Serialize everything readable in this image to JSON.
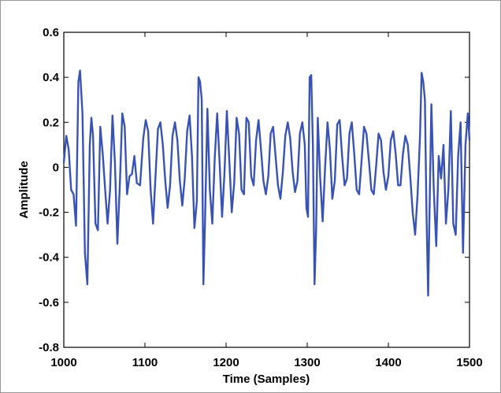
{
  "chart_data": {
    "type": "line",
    "title": "",
    "xlabel": "Time (Samples)",
    "ylabel": "Amplitude",
    "xlim": [
      1000,
      1500
    ],
    "ylim": [
      -0.8,
      0.6
    ],
    "xticks": [
      "1000",
      "1100",
      "1200",
      "1300",
      "1400",
      "1500"
    ],
    "yticks": [
      "0.6",
      "0.4",
      "0.2",
      "0",
      "-0.2",
      "-0.4",
      "-0.6",
      "-0.8"
    ],
    "grid": false,
    "line_color": "#3953b5",
    "series": [
      {
        "x": [
          1000,
          1003,
          1006,
          1009,
          1012,
          1015,
          1018,
          1020,
          1023,
          1026,
          1029,
          1032,
          1034,
          1036,
          1039,
          1042,
          1045,
          1048,
          1051,
          1054,
          1057,
          1060,
          1063,
          1066,
          1069,
          1072,
          1075,
          1078,
          1081,
          1084,
          1087,
          1090,
          1094,
          1098,
          1101,
          1104,
          1107,
          1110,
          1113,
          1116,
          1119,
          1122,
          1125,
          1128,
          1131,
          1134,
          1137,
          1140,
          1143,
          1146,
          1149,
          1152,
          1155,
          1158,
          1161,
          1164,
          1166,
          1168,
          1170,
          1172,
          1174,
          1177,
          1180,
          1183,
          1186,
          1189,
          1192,
          1195,
          1198,
          1201,
          1204,
          1207,
          1210,
          1213,
          1216,
          1219,
          1222,
          1225,
          1228,
          1231,
          1234,
          1237,
          1240,
          1243,
          1246,
          1249,
          1252,
          1255,
          1258,
          1261,
          1264,
          1267,
          1270,
          1273,
          1276,
          1279,
          1282,
          1285,
          1288,
          1291,
          1294,
          1297,
          1299,
          1301,
          1303,
          1305,
          1307,
          1309,
          1311,
          1313,
          1316,
          1319,
          1322,
          1325,
          1328,
          1331,
          1334,
          1337,
          1340,
          1343,
          1346,
          1349,
          1352,
          1355,
          1358,
          1361,
          1364,
          1367,
          1370,
          1373,
          1376,
          1379,
          1382,
          1385,
          1388,
          1391,
          1394,
          1397,
          1400,
          1403,
          1406,
          1409,
          1412,
          1415,
          1418,
          1421,
          1424,
          1427,
          1430,
          1433,
          1436,
          1439,
          1441,
          1443,
          1445,
          1447,
          1449,
          1451,
          1453,
          1456,
          1459,
          1462,
          1465,
          1468,
          1471,
          1474,
          1477,
          1480,
          1483,
          1486,
          1489,
          1492,
          1495,
          1498,
          1500
        ],
        "y": [
          0.02,
          0.14,
          0.08,
          -0.1,
          -0.12,
          -0.26,
          0.38,
          0.43,
          0.24,
          -0.38,
          -0.52,
          0.1,
          0.22,
          0.14,
          -0.25,
          -0.28,
          0.18,
          0.06,
          -0.1,
          -0.25,
          -0.1,
          0.23,
          0.02,
          -0.34,
          -0.08,
          0.24,
          0.18,
          -0.12,
          -0.04,
          -0.03,
          0.05,
          -0.07,
          -0.08,
          0.13,
          0.21,
          0.16,
          -0.1,
          -0.25,
          -0.04,
          0.17,
          0.2,
          0.1,
          -0.06,
          -0.18,
          -0.08,
          0.14,
          0.2,
          0.12,
          -0.06,
          -0.17,
          -0.05,
          0.16,
          0.23,
          0.05,
          -0.27,
          -0.15,
          0.4,
          0.38,
          0.3,
          -0.52,
          -0.25,
          0.26,
          -0.1,
          -0.25,
          0.04,
          0.24,
          0.02,
          -0.22,
          -0.03,
          0.25,
          0.03,
          -0.2,
          -0.07,
          0.22,
          0.15,
          -0.1,
          -0.12,
          0.22,
          0.2,
          -0.04,
          -0.08,
          0.12,
          0.21,
          0.08,
          -0.06,
          -0.12,
          -0.04,
          0.15,
          0.18,
          0.05,
          -0.08,
          -0.14,
          -0.02,
          0.14,
          0.2,
          0.13,
          -0.02,
          -0.11,
          -0.06,
          0.15,
          0.2,
          0.1,
          -0.18,
          -0.22,
          0.4,
          0.41,
          0.1,
          -0.52,
          -0.28,
          0.22,
          -0.05,
          -0.24,
          0.0,
          0.2,
          0.08,
          -0.14,
          -0.06,
          0.19,
          0.21,
          0.05,
          -0.08,
          -0.05,
          0.15,
          0.2,
          0.06,
          -0.1,
          -0.12,
          0.03,
          0.18,
          0.15,
          0.03,
          -0.1,
          -0.12,
          0.01,
          0.15,
          0.12,
          -0.02,
          -0.1,
          -0.04,
          0.12,
          0.16,
          0.06,
          -0.08,
          -0.08,
          0.06,
          0.14,
          0.1,
          -0.04,
          -0.2,
          -0.3,
          -0.12,
          0.14,
          0.42,
          0.38,
          0.3,
          -0.2,
          -0.57,
          -0.15,
          0.28,
          -0.1,
          -0.35,
          0.05,
          -0.05,
          0.1,
          -0.25,
          -0.1,
          0.25,
          -0.25,
          -0.3,
          0.05,
          0.2,
          -0.38,
          0.1,
          0.24,
          0.12
        ]
      }
    ]
  }
}
